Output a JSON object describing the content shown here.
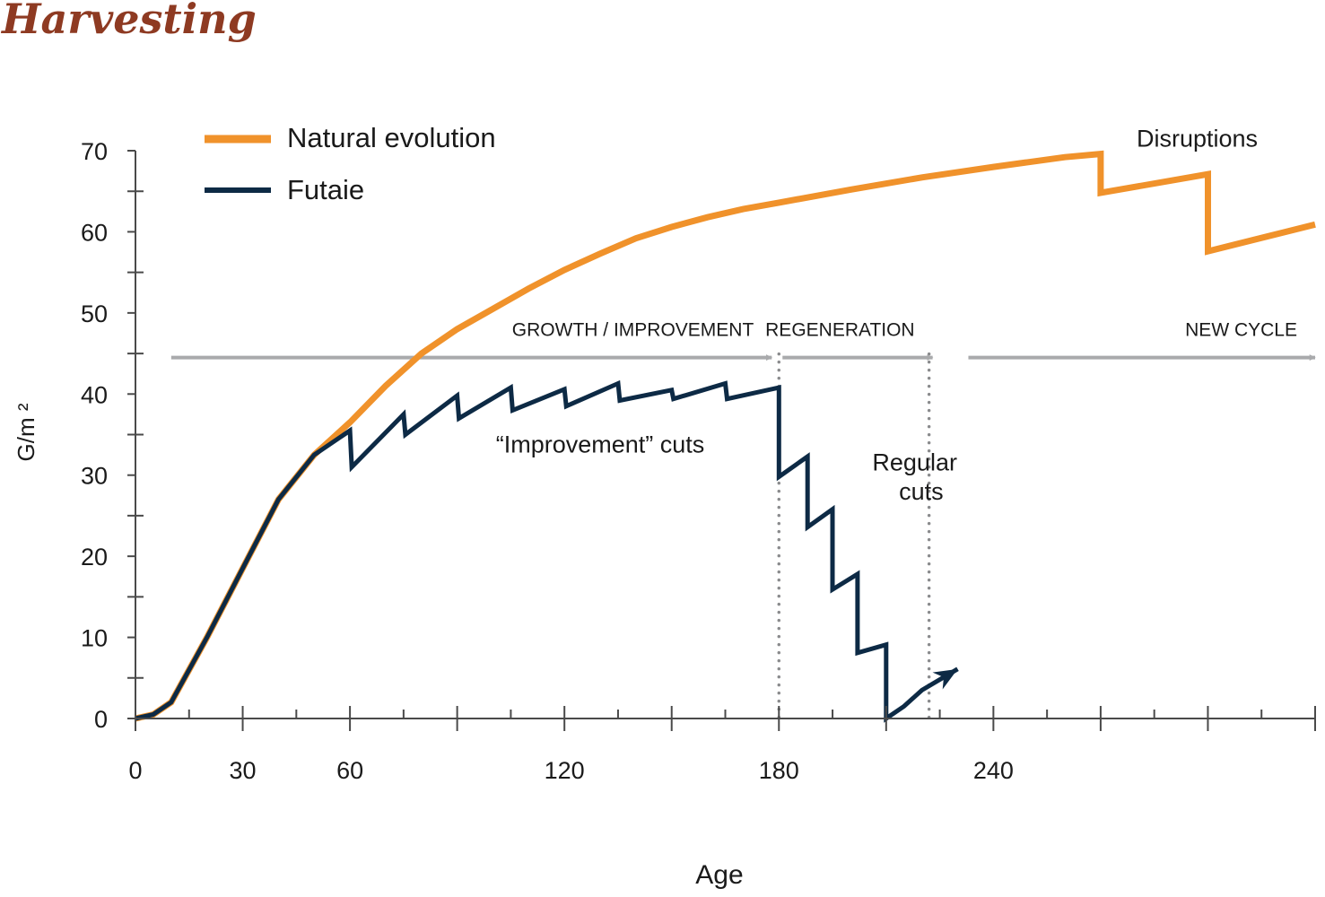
{
  "chart_data": {
    "type": "line",
    "title": "Harvesting",
    "xlabel": "Age",
    "ylabel": "G/m ²",
    "xlim": [
      0,
      330
    ],
    "ylim": [
      0,
      70
    ],
    "x_ticks": [
      0,
      30,
      60,
      120,
      180,
      240
    ],
    "y_ticks": [
      0,
      10,
      20,
      30,
      40,
      50,
      60,
      70
    ],
    "legend_position": "top-left",
    "series": [
      {
        "name": "Natural evolution",
        "color": "#F0922B",
        "x": [
          0,
          5,
          10,
          15,
          20,
          30,
          40,
          50,
          60,
          70,
          80,
          90,
          100,
          110,
          120,
          130,
          140,
          150,
          160,
          170,
          180,
          200,
          220,
          240,
          260,
          270,
          270,
          300,
          300,
          330
        ],
        "y": [
          0,
          0.5,
          2,
          6,
          10,
          18.5,
          27,
          32.5,
          36.5,
          41,
          45,
          48,
          50.5,
          53,
          55.3,
          57.3,
          59.2,
          60.6,
          61.8,
          62.8,
          63.6,
          65.2,
          66.7,
          68,
          69.2,
          69.6,
          64.8,
          67.1,
          57.6,
          60.9
        ]
      },
      {
        "name": "Futaie",
        "color": "#0D2A45",
        "x": [
          0,
          5,
          10,
          15,
          20,
          30,
          40,
          50,
          60,
          60.5,
          75,
          75.5,
          90,
          90.5,
          105,
          105.5,
          120,
          120.5,
          135,
          135.5,
          150,
          150.5,
          165,
          165.5,
          180,
          180,
          188,
          188,
          195,
          195,
          202,
          202,
          210,
          210,
          215,
          220,
          230
        ],
        "y": [
          0,
          0.5,
          2,
          6,
          10,
          18.5,
          27,
          32.5,
          35.5,
          31,
          37.5,
          35,
          39.8,
          37,
          40.8,
          38,
          40.6,
          38.5,
          41.3,
          39.2,
          40.5,
          39.4,
          41.3,
          39.4,
          40.8,
          29.8,
          32.3,
          23.6,
          25.8,
          15.9,
          17.8,
          8.1,
          9.1,
          0,
          1.5,
          3.5,
          6.1
        ]
      }
    ],
    "phases": [
      {
        "label": "GROWTH / IMPROVEMENT",
        "start": 10,
        "end": 178
      },
      {
        "label": "REGENERATION",
        "start": 181,
        "end": 223
      },
      {
        "label": "NEW CYCLE",
        "start": 233,
        "end": 330
      }
    ],
    "phase_level": 44.5,
    "phase_boundaries": [
      180,
      222
    ],
    "annotations": [
      {
        "text": "Disruptions",
        "x": 297,
        "y": 70.5
      },
      {
        "text": "“Improvement” cuts",
        "x": 130,
        "y": 32.8
      },
      {
        "text": "Regular",
        "x": 218,
        "y": 30.6
      },
      {
        "text": "cuts",
        "x": 218,
        "y": 27
      }
    ],
    "phase_arrow_color": "#A9AAAC",
    "boundary_color": "#8A8B8D",
    "title_color": "#8E3A22"
  }
}
